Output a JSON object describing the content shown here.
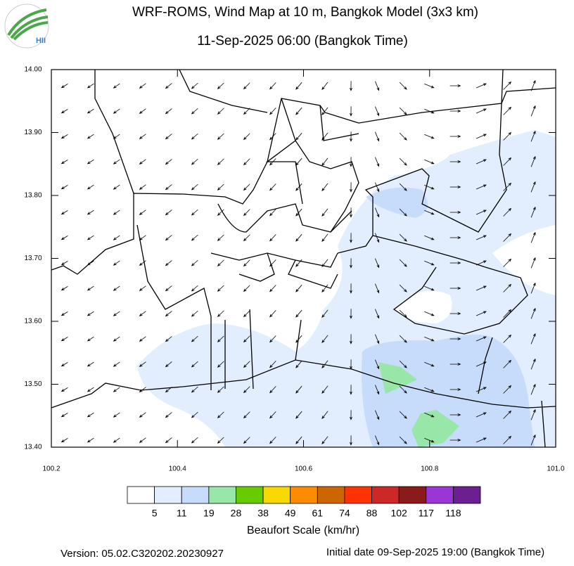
{
  "header": {
    "logo_text": "HII",
    "title": "WRF-ROMS, Wind Map at 10 m, Bangkok Model (3x3 km)",
    "subtitle": "11-Sep-2025 06:00 (Bangkok Time)"
  },
  "map": {
    "yticks": [
      "14.00",
      "13.90",
      "13.80",
      "13.70",
      "13.60",
      "13.50",
      "13.40"
    ],
    "xticks": [
      "100.2",
      "100.4",
      "100.6",
      "100.8",
      "101.0"
    ]
  },
  "legend": {
    "title": "Beaufort Scale (km/hr)",
    "labels": [
      "5",
      "11",
      "19",
      "28",
      "38",
      "49",
      "61",
      "74",
      "88",
      "102",
      "117",
      "118"
    ],
    "colors": [
      "#ffffff",
      "#e2eefd",
      "#c6dcfa",
      "#98e6a8",
      "#66cc00",
      "#f7d800",
      "#ff8c00",
      "#cc6600",
      "#ff3300",
      "#cc2828",
      "#8b1a1a",
      "#9a35d6",
      "#6a2090"
    ]
  },
  "footer": {
    "version": "Version: 05.02.C320202.20230927",
    "initial": "Initial date 09-Sep-2025 19:00 (Bangkok Time)"
  }
}
